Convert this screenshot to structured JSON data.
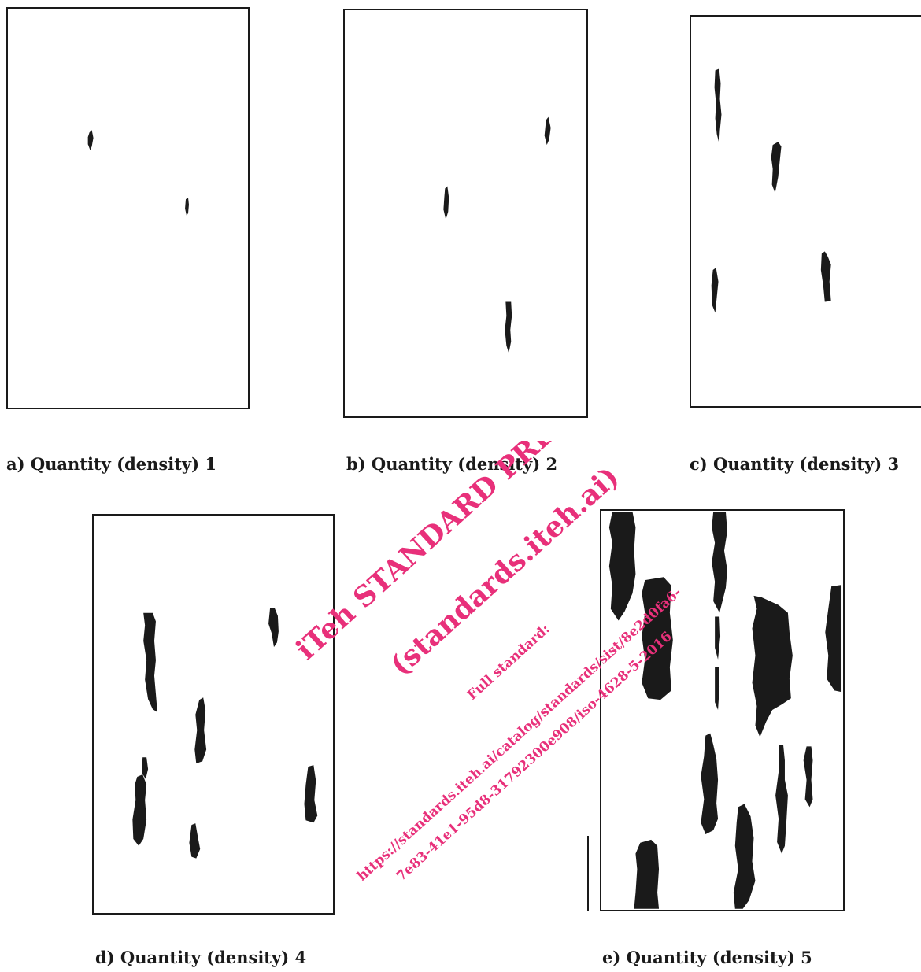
{
  "figure": {
    "panels": [
      {
        "id": "a",
        "caption": "a) Quantity (density) 1"
      },
      {
        "id": "b",
        "caption": "b) Quantity (density) 2"
      },
      {
        "id": "c",
        "caption": "c) Quantity (density) 3"
      },
      {
        "id": "d",
        "caption": "d) Quantity (density) 4"
      },
      {
        "id": "e",
        "caption": "e) Quantity (density) 5"
      }
    ]
  },
  "watermark": {
    "line1": "iTeh STANDARD PREVIEW",
    "line2": "(standards.iteh.ai)",
    "line3": "Full standard:",
    "line4": "https://standards.iteh.ai/catalog/standards/sist/8e2d0fa6-",
    "line5": "7e83-41e1-95d8-31792300e908/iso-4628-5-2016",
    "color": "#e8307a"
  }
}
